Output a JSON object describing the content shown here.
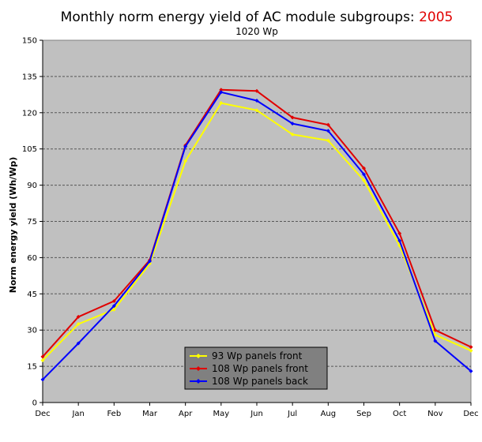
{
  "chart_data": {
    "type": "line",
    "title": "Monthly norm energy yield of AC module subgroups: ",
    "title_year": "2005",
    "subtitle": "1020 Wp",
    "xlabel": "",
    "ylabel": "Norm energy yield (Wh/Wp)",
    "categories": [
      "Dec",
      "Jan",
      "Feb",
      "Mar",
      "Apr",
      "May",
      "Jun",
      "Jul",
      "Aug",
      "Sep",
      "Oct",
      "Nov",
      "Dec"
    ],
    "ylim": [
      0,
      150
    ],
    "yticks": [
      0,
      15,
      30,
      45,
      60,
      75,
      90,
      105,
      120,
      135,
      150
    ],
    "grid": true,
    "legend_position": "bottom-center",
    "plot_background": "#c0c0c0",
    "series": [
      {
        "name": "93 Wp panels front",
        "color": "#ffff00",
        "values": [
          17.5,
          32.5,
          38.5,
          57.5,
          100,
          124,
          121,
          111,
          108.5,
          92,
          65,
          28,
          21.5
        ]
      },
      {
        "name": "108 Wp panels front",
        "color": "#e00000",
        "values": [
          19,
          35.5,
          42,
          59,
          106.5,
          129.5,
          129,
          118,
          115,
          97,
          70,
          30,
          23
        ]
      },
      {
        "name": "108 Wp panels back",
        "color": "#0000ff",
        "values": [
          9.5,
          24.5,
          40,
          58.5,
          106,
          128.5,
          125,
          115.5,
          112.5,
          94.5,
          67,
          25.5,
          13
        ]
      }
    ]
  }
}
